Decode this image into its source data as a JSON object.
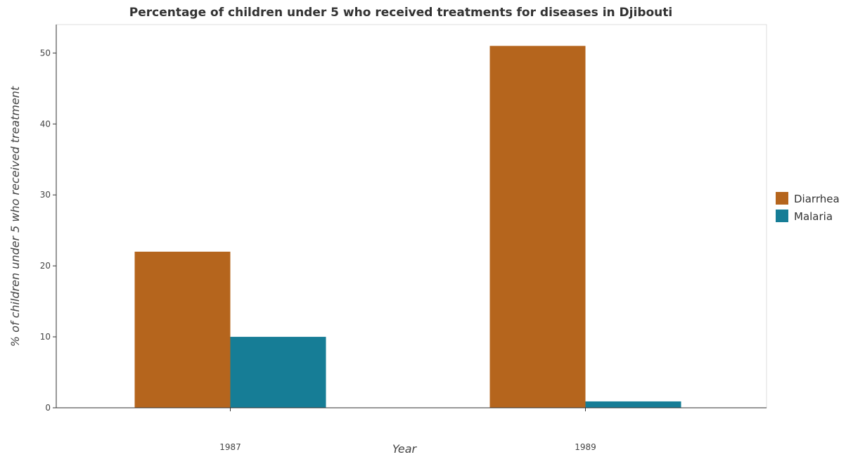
{
  "chart_data": {
    "type": "bar",
    "title": "Percentage of children under 5 who received treatments for diseases in Djibouti",
    "xlabel": "Year",
    "ylabel": "% of children under 5 who received treatment",
    "categories": [
      "1987",
      "1989"
    ],
    "series": [
      {
        "name": "Diarrhea",
        "color": "#b5651d",
        "values": [
          22,
          51
        ]
      },
      {
        "name": "Malaria",
        "color": "#167d96",
        "values": [
          10,
          0.9
        ]
      }
    ],
    "ylim": [
      0,
      54
    ],
    "yticks": [
      0,
      10,
      20,
      30,
      40,
      50
    ],
    "grid": false,
    "legend_position": "right"
  }
}
